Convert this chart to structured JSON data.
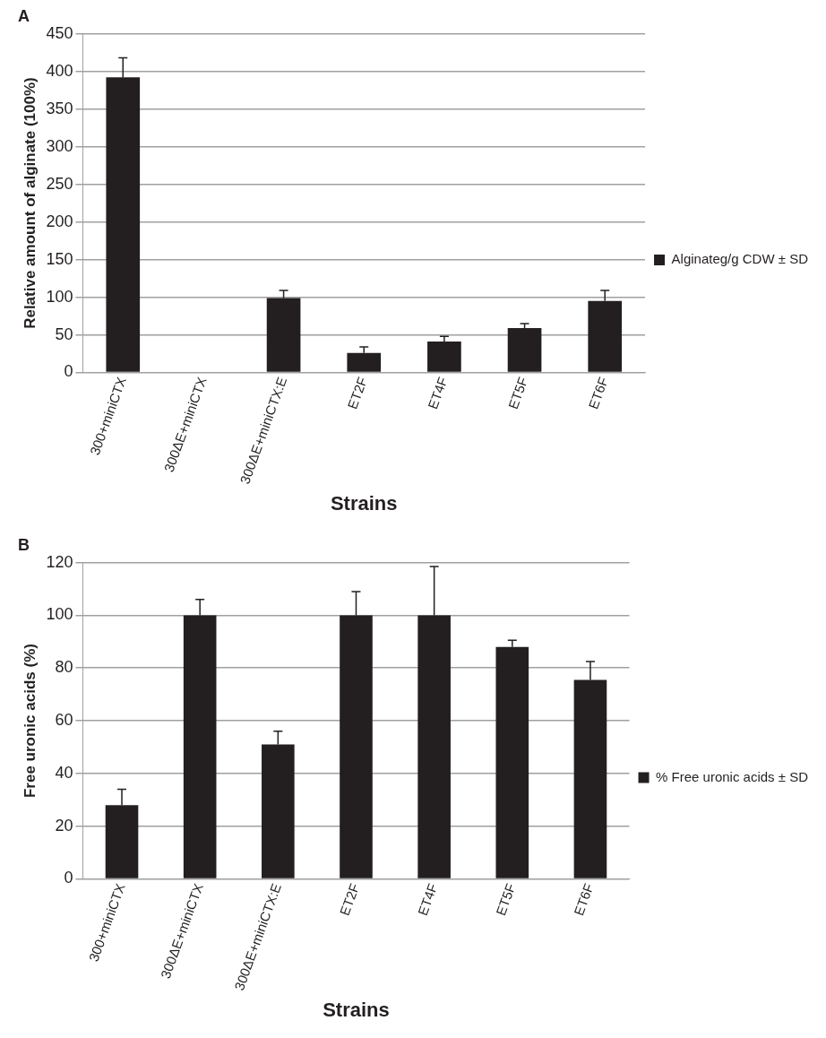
{
  "chart_data": [
    {
      "type": "bar",
      "title": "A",
      "xlabel": "Strains",
      "ylabel": "Relative amount of alginate (100%)",
      "categories": [
        "300+miniCTX",
        "300ΔE+miniCTX",
        "300ΔE+miniCTX:E",
        "ET2F",
        "ET4F",
        "ET5F",
        "ET6F"
      ],
      "series": [
        {
          "name": "Alginateg/g CDW ± SD",
          "color": "#231f20",
          "values": [
            392,
            0,
            99,
            26,
            41,
            59,
            95
          ],
          "errors": [
            26,
            null,
            10,
            8,
            7,
            6,
            14
          ]
        }
      ],
      "ylim": [
        0,
        450
      ],
      "yticks": [
        0,
        50,
        100,
        150,
        200,
        250,
        300,
        350,
        400,
        450
      ],
      "grid": "y",
      "legend": "right"
    },
    {
      "type": "bar",
      "title": "B",
      "xlabel": "Strains",
      "ylabel": "Free uronic acids (%)",
      "categories": [
        "300+miniCTX",
        "300ΔE+miniCTX",
        "300ΔE+miniCTX:E",
        "ET2F",
        "ET4F",
        "ET5F",
        "ET6F"
      ],
      "series": [
        {
          "name": "% Free uronic acids ± SD",
          "color": "#231f20",
          "values": [
            28,
            100,
            51,
            100,
            100,
            88,
            75.5
          ],
          "errors": [
            6,
            6,
            5,
            9,
            18.5,
            2.5,
            7
          ]
        }
      ],
      "ylim": [
        0,
        120
      ],
      "yticks": [
        0,
        20,
        40,
        60,
        80,
        100,
        120
      ],
      "grid": "y",
      "legend": "right"
    }
  ]
}
